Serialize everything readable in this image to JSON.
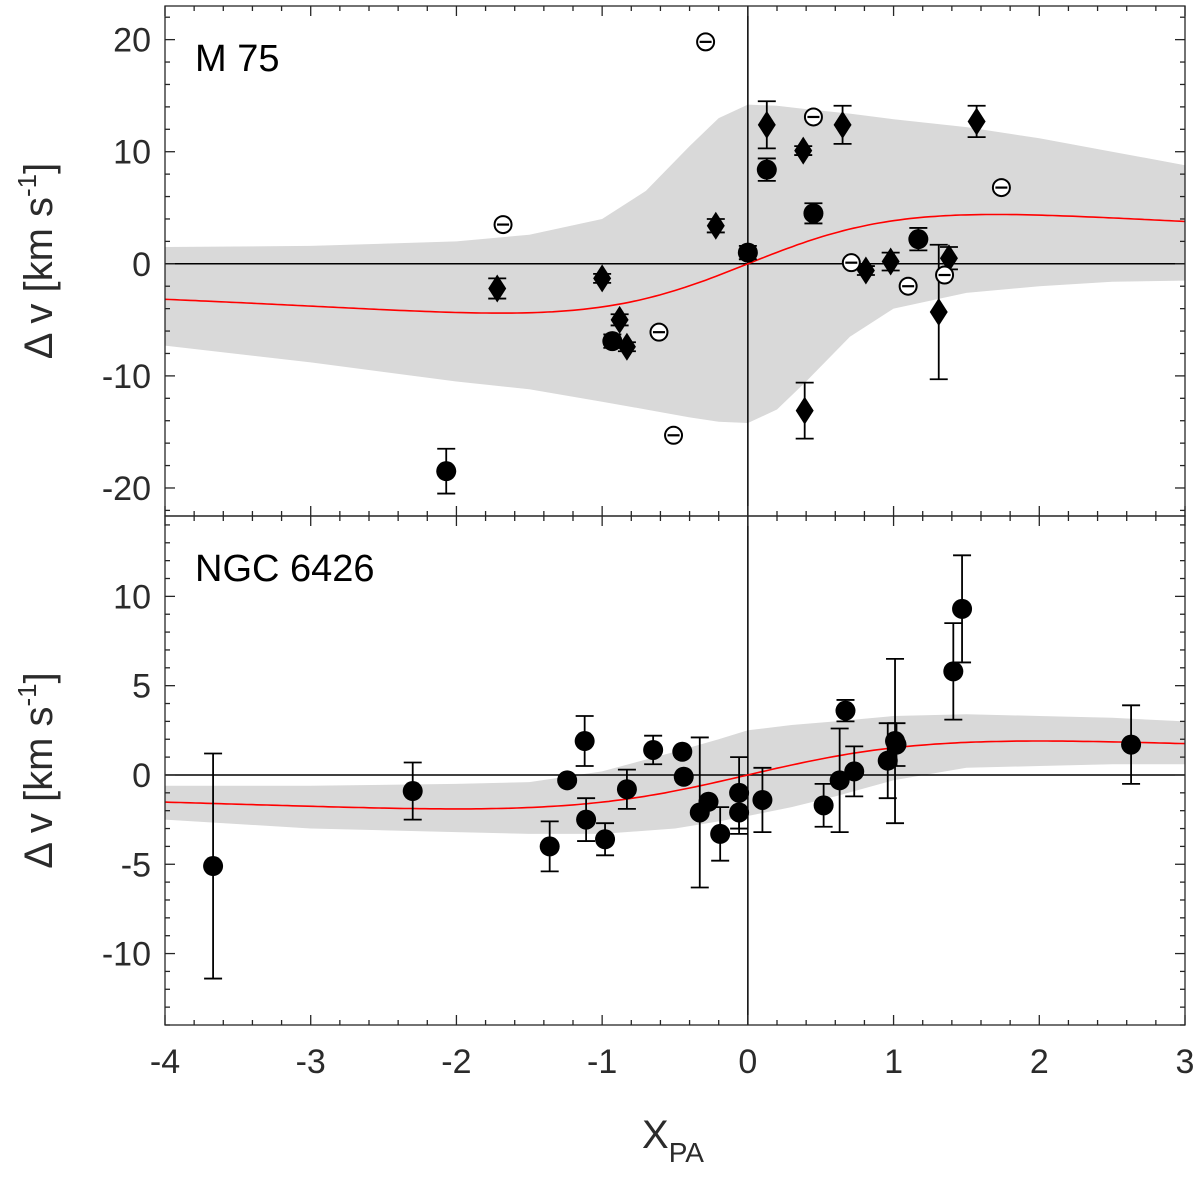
{
  "chart_data": {
    "type": "scatter",
    "shared_x_axis": {
      "label_main": "X",
      "label_sub": "PA",
      "xlim": [
        -4,
        3
      ],
      "ticks": [
        -4,
        -3,
        -2,
        -1,
        0,
        1,
        2,
        3
      ],
      "tick_labels": [
        "-4",
        "-3",
        "-2",
        "-1",
        "0",
        "1",
        "2",
        "3"
      ]
    },
    "panels": [
      {
        "id": "m75",
        "label": "M 75",
        "ylabel_main": "Δ v [km s",
        "ylabel_sup": "-1",
        "ylabel_end": "]",
        "ylim": [
          -22.5,
          23
        ],
        "yticks": [
          -20,
          -10,
          0,
          10,
          20
        ],
        "ytick_labels": [
          "-20",
          "-10",
          "0",
          "10",
          "20"
        ],
        "model_A": 4.4,
        "model_x0": 1.7,
        "band_x": [
          -4,
          -3,
          -2,
          -1.5,
          -1,
          -0.7,
          -0.4,
          -0.2,
          0,
          0.2,
          0.4,
          0.7,
          1,
          1.5,
          2,
          2.5,
          3
        ],
        "band_upper": [
          1.5,
          1.6,
          2.0,
          2.6,
          4.0,
          6.5,
          10.5,
          13.0,
          14.2,
          14.1,
          13.8,
          13.4,
          12.9,
          12.2,
          11.2,
          10.0,
          8.8
        ],
        "band_lower": [
          -7.3,
          -8.8,
          -10.5,
          -11.2,
          -12.3,
          -13.0,
          -13.7,
          -14.1,
          -14.2,
          -13.0,
          -10.5,
          -6.5,
          -4.0,
          -2.6,
          -2.0,
          -1.6,
          -1.5
        ],
        "series": [
          {
            "name": "filled circles",
            "marker": "circle-filled",
            "points": [
              {
                "x": -2.07,
                "y": -18.5,
                "err": 2.0
              },
              {
                "x": -0.93,
                "y": -6.9,
                "err": 0.6
              },
              {
                "x": 0.0,
                "y": 1.0,
                "err": 0.6
              },
              {
                "x": 0.13,
                "y": 8.4,
                "err": 1.0
              },
              {
                "x": 0.45,
                "y": 4.5,
                "err": 0.9
              },
              {
                "x": 1.17,
                "y": 2.2,
                "err": 1.0
              }
            ]
          },
          {
            "name": "filled diamonds",
            "marker": "diamond-filled",
            "points": [
              {
                "x": -1.72,
                "y": -2.2,
                "err": 0.9
              },
              {
                "x": -1.0,
                "y": -1.3,
                "err": 0.4
              },
              {
                "x": -0.88,
                "y": -5.0,
                "err": 0.5
              },
              {
                "x": -0.83,
                "y": -7.4,
                "err": 0.4
              },
              {
                "x": -0.22,
                "y": 3.4,
                "err": 0.6
              },
              {
                "x": 0.13,
                "y": 12.4,
                "err": 2.1
              },
              {
                "x": 0.38,
                "y": 10.1,
                "err": 0.4
              },
              {
                "x": 0.39,
                "y": -13.1,
                "err": 2.5
              },
              {
                "x": 0.65,
                "y": 12.4,
                "err": 1.7
              },
              {
                "x": 0.81,
                "y": -0.6,
                "err": 0.4
              },
              {
                "x": 0.98,
                "y": 0.2,
                "err": 0.8
              },
              {
                "x": 1.31,
                "y": -4.3,
                "err": 6.0
              },
              {
                "x": 1.38,
                "y": 0.5,
                "err": 1.0
              },
              {
                "x": 1.57,
                "y": 12.7,
                "err": 1.4
              }
            ]
          },
          {
            "name": "open circles",
            "marker": "circle-open",
            "points": [
              {
                "x": -1.68,
                "y": 3.5
              },
              {
                "x": -0.61,
                "y": -6.1
              },
              {
                "x": -0.51,
                "y": -15.3
              },
              {
                "x": -0.29,
                "y": 19.8
              },
              {
                "x": 0.45,
                "y": 13.1
              },
              {
                "x": 0.71,
                "y": 0.1
              },
              {
                "x": 1.1,
                "y": -2.0
              },
              {
                "x": 1.35,
                "y": -1.0
              },
              {
                "x": 1.74,
                "y": 6.8
              }
            ]
          }
        ]
      },
      {
        "id": "ngc6426",
        "label": "NGC 6426",
        "ylabel_main": "Δ v [km s",
        "ylabel_sup": "-1",
        "ylabel_end": "]",
        "ylim": [
          -14,
          14.5
        ],
        "yticks": [
          -10,
          -5,
          0,
          5,
          10
        ],
        "ytick_labels": [
          "-10",
          "-5",
          "0",
          "5",
          "10"
        ],
        "model_A": 1.9,
        "model_x0": 2.0,
        "band_x": [
          -4,
          -3,
          -2,
          -1.5,
          -1,
          -0.5,
          -0.2,
          0,
          0.3,
          0.6,
          1,
          1.5,
          2,
          2.5,
          3
        ],
        "band_upper": [
          -0.6,
          -0.6,
          -0.5,
          -0.4,
          0.2,
          1.3,
          2.0,
          2.5,
          2.8,
          3.0,
          3.3,
          3.4,
          3.3,
          3.2,
          3.0
        ],
        "band_lower": [
          -2.5,
          -3.0,
          -3.2,
          -3.3,
          -3.3,
          -3.0,
          -2.6,
          -2.3,
          -1.8,
          -1.2,
          -0.3,
          0.4,
          0.5,
          0.6,
          0.6
        ],
        "series": [
          {
            "name": "filled circles",
            "marker": "circle-filled",
            "points": [
              {
                "x": -3.67,
                "y": -5.1,
                "err": 6.3
              },
              {
                "x": -2.3,
                "y": -0.9,
                "err": 1.6
              },
              {
                "x": -1.36,
                "y": -4.0,
                "err": 1.4
              },
              {
                "x": -1.24,
                "y": -0.3
              },
              {
                "x": -1.12,
                "y": 1.9,
                "err": 1.4
              },
              {
                "x": -1.11,
                "y": -2.5,
                "err": 1.2
              },
              {
                "x": -0.98,
                "y": -3.6,
                "err": 0.9
              },
              {
                "x": -0.83,
                "y": -0.8,
                "err": 1.1
              },
              {
                "x": -0.65,
                "y": 1.4,
                "err": 0.8
              },
              {
                "x": -0.45,
                "y": 1.3
              },
              {
                "x": -0.44,
                "y": -0.1
              },
              {
                "x": -0.33,
                "y": -2.1,
                "err": 4.2
              },
              {
                "x": -0.27,
                "y": -1.5
              },
              {
                "x": -0.19,
                "y": -3.3,
                "err": 1.5
              },
              {
                "x": -0.06,
                "y": -1.0,
                "err": 2.0
              },
              {
                "x": -0.06,
                "y": -2.1,
                "err": 1.2
              },
              {
                "x": 0.1,
                "y": -1.4,
                "err": 1.8
              },
              {
                "x": 0.52,
                "y": -1.7,
                "err": 1.2
              },
              {
                "x": 0.63,
                "y": -0.3,
                "err": 2.9
              },
              {
                "x": 0.67,
                "y": 3.6,
                "err": 0.6
              },
              {
                "x": 0.73,
                "y": 0.2,
                "err": 1.4
              },
              {
                "x": 0.96,
                "y": 0.8,
                "err": 2.1
              },
              {
                "x": 1.01,
                "y": 1.9,
                "err": 4.6
              },
              {
                "x": 1.02,
                "y": 1.7,
                "err": 1.2
              },
              {
                "x": 1.41,
                "y": 5.8,
                "err": 2.7
              },
              {
                "x": 1.47,
                "y": 9.3,
                "err": 3.0
              },
              {
                "x": 2.63,
                "y": 1.7,
                "err": 2.2
              }
            ]
          }
        ]
      }
    ]
  }
}
